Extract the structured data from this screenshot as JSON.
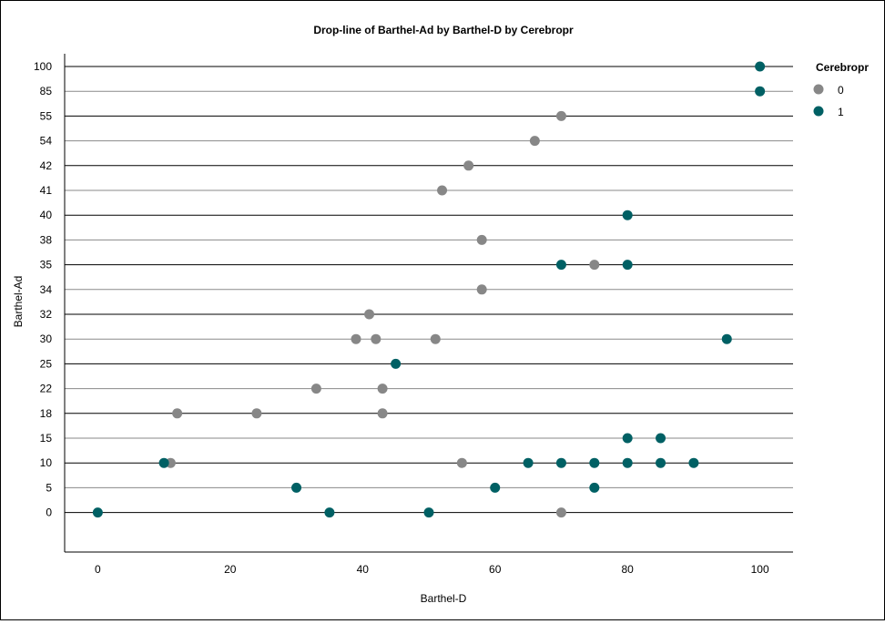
{
  "chart_data": {
    "type": "scatter",
    "title": "Drop-line of Barthel-Ad by Barthel-D by Cerebropr",
    "xlabel": "Barthel-D",
    "ylabel": "Barthel-Ad",
    "xlim": [
      -5,
      105
    ],
    "x_ticks": [
      0,
      20,
      40,
      60,
      80,
      100
    ],
    "y_categories": [
      "100",
      "85",
      "55",
      "54",
      "42",
      "41",
      "40",
      "38",
      "35",
      "34",
      "32",
      "30",
      "25",
      "22",
      "18",
      "15",
      "10",
      "5",
      "0"
    ],
    "legend_title": "Cerebropr",
    "legend_position": "right",
    "grid": "horizontal",
    "series": [
      {
        "name": "0",
        "color": "#878787",
        "points": [
          {
            "x": 70,
            "y": "55"
          },
          {
            "x": 66,
            "y": "54"
          },
          {
            "x": 56,
            "y": "42"
          },
          {
            "x": 52,
            "y": "41"
          },
          {
            "x": 58,
            "y": "38"
          },
          {
            "x": 75,
            "y": "35"
          },
          {
            "x": 58,
            "y": "34"
          },
          {
            "x": 41,
            "y": "32"
          },
          {
            "x": 39,
            "y": "30"
          },
          {
            "x": 42,
            "y": "30"
          },
          {
            "x": 51,
            "y": "30"
          },
          {
            "x": 33,
            "y": "22"
          },
          {
            "x": 43,
            "y": "22"
          },
          {
            "x": 12,
            "y": "18"
          },
          {
            "x": 24,
            "y": "18"
          },
          {
            "x": 43,
            "y": "18"
          },
          {
            "x": 11,
            "y": "10"
          },
          {
            "x": 55,
            "y": "10"
          },
          {
            "x": 70,
            "y": "0"
          }
        ]
      },
      {
        "name": "1",
        "color": "#006064",
        "points": [
          {
            "x": 100,
            "y": "100"
          },
          {
            "x": 100,
            "y": "85"
          },
          {
            "x": 80,
            "y": "40"
          },
          {
            "x": 70,
            "y": "35"
          },
          {
            "x": 80,
            "y": "35"
          },
          {
            "x": 95,
            "y": "30"
          },
          {
            "x": 45,
            "y": "25"
          },
          {
            "x": 80,
            "y": "15"
          },
          {
            "x": 85,
            "y": "15"
          },
          {
            "x": 10,
            "y": "10"
          },
          {
            "x": 65,
            "y": "10"
          },
          {
            "x": 70,
            "y": "10"
          },
          {
            "x": 75,
            "y": "10"
          },
          {
            "x": 80,
            "y": "10"
          },
          {
            "x": 85,
            "y": "10"
          },
          {
            "x": 90,
            "y": "10"
          },
          {
            "x": 30,
            "y": "5"
          },
          {
            "x": 60,
            "y": "5"
          },
          {
            "x": 75,
            "y": "5"
          },
          {
            "x": 0,
            "y": "0"
          },
          {
            "x": 35,
            "y": "0"
          },
          {
            "x": 50,
            "y": "0"
          }
        ]
      }
    ]
  }
}
